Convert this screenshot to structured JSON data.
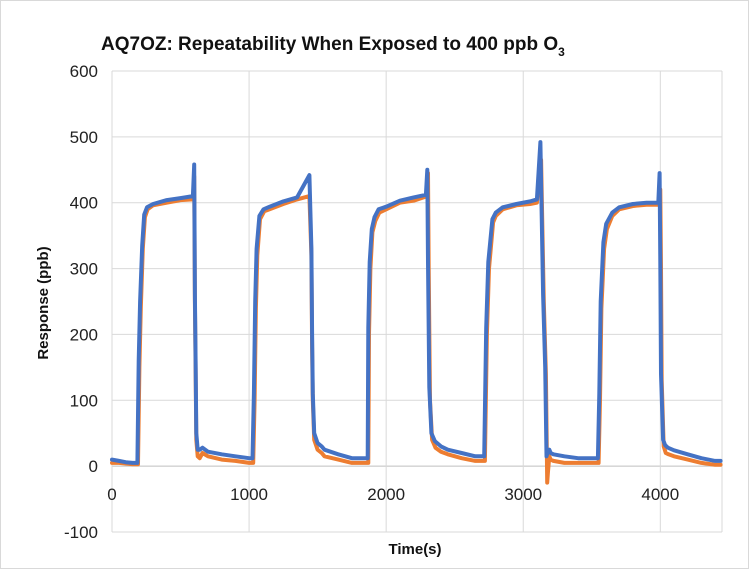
{
  "chart_data": {
    "type": "line",
    "title": "AQ7OZ: Repeatability When Exposed to 400 ppb O",
    "title_subscript": "3",
    "xlabel": "Time(s)",
    "ylabel": "Response (ppb)",
    "xlim": [
      0,
      4450
    ],
    "ylim": [
      -100,
      600
    ],
    "x_ticks": [
      "0",
      "1000",
      "2000",
      "3000",
      "4000"
    ],
    "y_ticks": [
      "600",
      "500",
      "400",
      "300",
      "200",
      "100",
      "0",
      "-100"
    ],
    "grid": true,
    "legend": "none",
    "series": [
      {
        "color": "#ED7D31",
        "x": [
          0,
          50,
          100,
          150,
          190,
          200,
          210,
          225,
          240,
          260,
          300,
          400,
          500,
          590,
          600,
          605,
          610,
          615,
          625,
          640,
          660,
          700,
          800,
          900,
          1000,
          1030,
          1040,
          1050,
          1060,
          1080,
          1110,
          1150,
          1250,
          1350,
          1440,
          1455,
          1460,
          1465,
          1475,
          1500,
          1530,
          1550,
          1650,
          1750,
          1870,
          1875,
          1885,
          1900,
          1920,
          1950,
          2000,
          2100,
          2200,
          2300,
          2305,
          2310,
          2320,
          2335,
          2360,
          2400,
          2450,
          2550,
          2650,
          2720,
          2735,
          2750,
          2780,
          2800,
          2850,
          2950,
          3050,
          3100,
          3130,
          3140,
          3150,
          3165,
          3175,
          3180,
          3190,
          3200,
          3220,
          3300,
          3400,
          3500,
          3550,
          3560,
          3570,
          3590,
          3610,
          3650,
          3700,
          3800,
          3900,
          3990,
          4000,
          4005,
          4010,
          4025,
          4040,
          4060,
          4100,
          4200,
          4300,
          4400,
          4440
        ],
        "y": [
          5,
          5,
          4,
          3,
          3,
          150,
          240,
          330,
          378,
          390,
          396,
          400,
          404,
          405,
          440,
          250,
          150,
          40,
          15,
          12,
          20,
          15,
          10,
          8,
          5,
          5,
          100,
          240,
          320,
          375,
          387,
          390,
          398,
          405,
          410,
          320,
          180,
          100,
          40,
          25,
          20,
          15,
          10,
          5,
          5,
          200,
          300,
          355,
          372,
          385,
          390,
          400,
          403,
          410,
          445,
          300,
          100,
          40,
          28,
          22,
          18,
          12,
          8,
          8,
          200,
          300,
          370,
          380,
          390,
          396,
          398,
          400,
          465,
          360,
          250,
          140,
          -25,
          -10,
          15,
          10,
          8,
          5,
          5,
          5,
          5,
          100,
          240,
          330,
          360,
          380,
          390,
          395,
          397,
          397,
          420,
          300,
          130,
          30,
          20,
          18,
          15,
          10,
          5,
          2,
          2
        ]
      },
      {
        "color": "#4472C4",
        "x": [
          0,
          50,
          100,
          150,
          185,
          195,
          205,
          220,
          235,
          255,
          300,
          400,
          500,
          590,
          600,
          605,
          610,
          615,
          625,
          640,
          660,
          700,
          800,
          900,
          1000,
          1025,
          1035,
          1045,
          1055,
          1075,
          1105,
          1150,
          1250,
          1350,
          1440,
          1455,
          1460,
          1465,
          1475,
          1500,
          1530,
          1550,
          1650,
          1750,
          1865,
          1870,
          1880,
          1895,
          1915,
          1945,
          2000,
          2100,
          2200,
          2290,
          2300,
          2305,
          2315,
          2330,
          2355,
          2400,
          2450,
          2550,
          2650,
          2715,
          2730,
          2745,
          2775,
          2800,
          2850,
          2950,
          3050,
          3100,
          3125,
          3135,
          3145,
          3160,
          3170,
          3180,
          3190,
          3200,
          3220,
          3300,
          3400,
          3500,
          3545,
          3555,
          3565,
          3585,
          3605,
          3650,
          3700,
          3800,
          3900,
          3985,
          3995,
          4000,
          4005,
          4020,
          4035,
          4055,
          4100,
          4200,
          4300,
          4400,
          4440
        ],
        "y": [
          10,
          8,
          6,
          5,
          5,
          160,
          250,
          335,
          382,
          393,
          398,
          404,
          407,
          410,
          458,
          260,
          160,
          50,
          25,
          25,
          28,
          22,
          18,
          15,
          12,
          12,
          110,
          250,
          330,
          380,
          390,
          394,
          402,
          408,
          442,
          330,
          200,
          110,
          50,
          35,
          30,
          25,
          18,
          12,
          12,
          210,
          310,
          360,
          378,
          390,
          394,
          403,
          408,
          412,
          450,
          310,
          120,
          50,
          38,
          30,
          25,
          20,
          15,
          15,
          210,
          310,
          375,
          385,
          393,
          398,
          402,
          405,
          492,
          380,
          260,
          150,
          15,
          22,
          25,
          20,
          18,
          15,
          12,
          12,
          12,
          110,
          250,
          340,
          368,
          385,
          393,
          398,
          400,
          400,
          445,
          310,
          140,
          40,
          32,
          28,
          24,
          18,
          12,
          8,
          8
        ]
      }
    ]
  }
}
